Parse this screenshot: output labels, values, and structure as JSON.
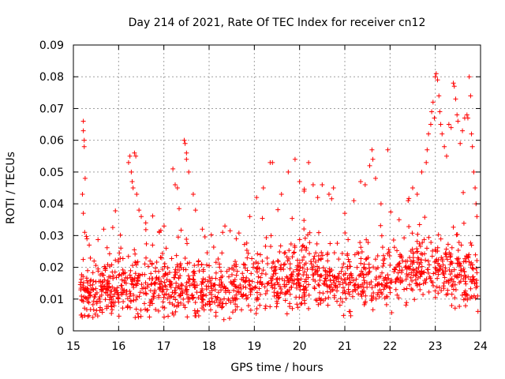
{
  "chart_data": {
    "type": "scatter",
    "title": "Day 214 of 2021, Rate Of TEC Index for receiver cn12",
    "xlabel": "GPS time / hours",
    "ylabel": "ROTI / TECUs",
    "xlim": [
      15,
      24
    ],
    "ylim": [
      0,
      0.09
    ],
    "x_ticks": [
      "15",
      "16",
      "17",
      "18",
      "19",
      "20",
      "21",
      "22",
      "23",
      "24"
    ],
    "y_ticks": [
      "0",
      "0.01",
      "0.02",
      "0.03",
      "0.04",
      "0.05",
      "0.06",
      "0.07",
      "0.08",
      "0.09"
    ],
    "x_tick_values": [
      15,
      16,
      17,
      18,
      19,
      20,
      21,
      22,
      23,
      24
    ],
    "y_tick_values": [
      0,
      0.01,
      0.02,
      0.03,
      0.04,
      0.05,
      0.06,
      0.07,
      0.08,
      0.09
    ],
    "grid": true,
    "marker": "+",
    "color": "#ff0000",
    "x_start": 15.15,
    "x_end": 23.95,
    "baseline": [
      [
        15.15,
        0.012
      ],
      [
        15.5,
        0.012
      ],
      [
        16.0,
        0.013
      ],
      [
        16.5,
        0.013
      ],
      [
        17.0,
        0.013
      ],
      [
        17.5,
        0.013
      ],
      [
        18.0,
        0.012
      ],
      [
        18.5,
        0.013
      ],
      [
        19.0,
        0.015
      ],
      [
        19.5,
        0.016
      ],
      [
        20.0,
        0.017
      ],
      [
        20.5,
        0.016
      ],
      [
        21.0,
        0.015
      ],
      [
        21.5,
        0.016
      ],
      [
        22.0,
        0.016
      ],
      [
        22.5,
        0.019
      ],
      [
        23.0,
        0.02
      ],
      [
        23.5,
        0.018
      ],
      [
        23.95,
        0.016
      ]
    ],
    "spikes": [
      [
        15.22,
        0.066
      ],
      [
        15.22,
        0.063
      ],
      [
        15.24,
        0.06
      ],
      [
        15.24,
        0.058
      ],
      [
        15.26,
        0.048
      ],
      [
        15.2,
        0.043
      ],
      [
        15.22,
        0.037
      ],
      [
        15.25,
        0.031
      ],
      [
        15.3,
        0.029
      ],
      [
        15.35,
        0.027
      ],
      [
        16.25,
        0.055
      ],
      [
        16.22,
        0.053
      ],
      [
        16.28,
        0.05
      ],
      [
        16.35,
        0.056
      ],
      [
        16.38,
        0.055
      ],
      [
        16.3,
        0.047
      ],
      [
        16.32,
        0.045
      ],
      [
        16.4,
        0.043
      ],
      [
        16.45,
        0.038
      ],
      [
        16.5,
        0.036
      ],
      [
        16.6,
        0.034
      ],
      [
        16.75,
        0.027
      ],
      [
        16.9,
        0.031
      ],
      [
        17.05,
        0.026
      ],
      [
        17.2,
        0.051
      ],
      [
        17.25,
        0.046
      ],
      [
        17.3,
        0.045
      ],
      [
        17.45,
        0.06
      ],
      [
        17.47,
        0.059
      ],
      [
        17.5,
        0.056
      ],
      [
        17.5,
        0.054
      ],
      [
        17.55,
        0.05
      ],
      [
        17.65,
        0.043
      ],
      [
        17.7,
        0.038
      ],
      [
        17.85,
        0.032
      ],
      [
        18.3,
        0.031
      ],
      [
        18.35,
        0.033
      ],
      [
        18.6,
        0.029
      ],
      [
        18.9,
        0.036
      ],
      [
        19.05,
        0.042
      ],
      [
        19.2,
        0.045
      ],
      [
        19.35,
        0.053
      ],
      [
        19.4,
        0.053
      ],
      [
        19.6,
        0.043
      ],
      [
        19.75,
        0.05
      ],
      [
        19.9,
        0.054
      ],
      [
        20.0,
        0.047
      ],
      [
        20.1,
        0.044
      ],
      [
        20.2,
        0.053
      ],
      [
        20.3,
        0.046
      ],
      [
        20.4,
        0.042
      ],
      [
        20.5,
        0.046
      ],
      [
        20.65,
        0.043
      ],
      [
        20.75,
        0.045
      ],
      [
        21.0,
        0.037
      ],
      [
        21.2,
        0.041
      ],
      [
        21.35,
        0.047
      ],
      [
        21.45,
        0.046
      ],
      [
        21.55,
        0.052
      ],
      [
        21.6,
        0.057
      ],
      [
        21.62,
        0.054
      ],
      [
        21.68,
        0.048
      ],
      [
        21.8,
        0.04
      ],
      [
        21.95,
        0.057
      ],
      [
        22.2,
        0.035
      ],
      [
        22.4,
        0.041
      ],
      [
        22.5,
        0.045
      ],
      [
        22.6,
        0.043
      ],
      [
        22.7,
        0.05
      ],
      [
        22.8,
        0.053
      ],
      [
        22.82,
        0.057
      ],
      [
        22.85,
        0.062
      ],
      [
        22.9,
        0.065
      ],
      [
        22.92,
        0.069
      ],
      [
        22.95,
        0.072
      ],
      [
        22.98,
        0.067
      ],
      [
        23.0,
        0.08
      ],
      [
        23.02,
        0.081
      ],
      [
        23.05,
        0.079
      ],
      [
        23.08,
        0.074
      ],
      [
        23.1,
        0.069
      ],
      [
        23.12,
        0.065
      ],
      [
        23.15,
        0.062
      ],
      [
        23.2,
        0.058
      ],
      [
        23.25,
        0.055
      ],
      [
        23.3,
        0.065
      ],
      [
        23.35,
        0.064
      ],
      [
        23.4,
        0.078
      ],
      [
        23.42,
        0.077
      ],
      [
        23.45,
        0.073
      ],
      [
        23.48,
        0.068
      ],
      [
        23.5,
        0.066
      ],
      [
        23.55,
        0.059
      ],
      [
        23.6,
        0.063
      ],
      [
        23.65,
        0.067
      ],
      [
        23.7,
        0.068
      ],
      [
        23.72,
        0.067
      ],
      [
        23.75,
        0.08
      ],
      [
        23.78,
        0.074
      ],
      [
        23.8,
        0.062
      ],
      [
        23.82,
        0.058
      ],
      [
        23.85,
        0.05
      ],
      [
        23.88,
        0.045
      ],
      [
        23.9,
        0.04
      ],
      [
        23.92,
        0.036
      ]
    ]
  }
}
